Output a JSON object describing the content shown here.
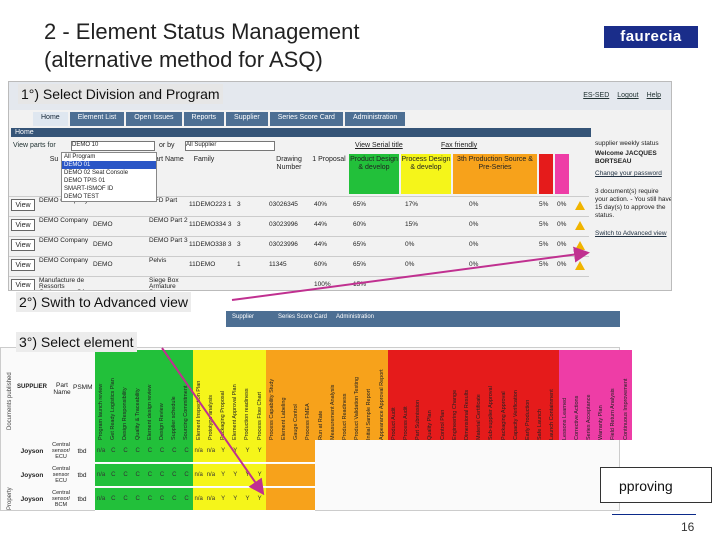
{
  "slide": {
    "title_line1": "2 - Element Status Management",
    "title_line2": "(alternative method for ASQ)",
    "logo": "faurecia",
    "page_number": "16"
  },
  "callouts": {
    "step1": "1°) Select  Division and Program",
    "step2": "2°) Swith to Advanced view",
    "step3": "3°) Select element",
    "approving": "pproving"
  },
  "colors": {
    "arrow": "#c03090",
    "green": "#22c03a",
    "yellow": "#f5f51a",
    "orange": "#f7a21b",
    "red": "#e51b1b",
    "pink": "#ee3da6"
  },
  "screen1": {
    "top_links": [
      "ES-SED",
      "Logout",
      "Help"
    ],
    "tabs": [
      "Home",
      "Element List",
      "Open Issues",
      "Reports",
      "Supplier",
      "Series Score Card",
      "Administration"
    ],
    "home_bar": "Home",
    "filter_label": "View parts for",
    "division_value": "DEMO 10",
    "program_label": "or by",
    "program_value": "All Supplier",
    "serial_link": "View Serial title",
    "fax_link": "Fax friendly",
    "dropdown_options": [
      "All Program",
      "DEMO 01",
      "DEMO 02 Seat Console",
      "DEMO TPIS 01",
      "SMART-ISMOF ID",
      "DEMO TEST"
    ],
    "columns": [
      "Su",
      "Part Name",
      "Family",
      "",
      "",
      "",
      "Drawing Number",
      "1 Proposal",
      "Product Design & develop",
      "Process Design & develop",
      "3th Production Source & Pre-Series",
      "",
      "",
      ""
    ],
    "rows": [
      {
        "view": "View",
        "supplier": "DEMO Company",
        "code": "",
        "part": "TIFD Part",
        "number": "11DEMO223 1",
        "q": "3",
        "drawing": "03026345",
        "p1": "40%",
        "p2": "65%",
        "p3": "17%",
        "p4": "0%",
        "p5": "5%",
        "p6": "0%"
      },
      {
        "view": "View",
        "supplier": "DEMO Company",
        "code": "DEMO",
        "part": "DEMO Part 2",
        "number": "11DEMO334 3",
        "q": "3",
        "drawing": "03023996",
        "p1": "44%",
        "p2": "60%",
        "p3": "15%",
        "p4": "0%",
        "p5": "5%",
        "p6": "0%"
      },
      {
        "view": "View",
        "supplier": "DEMO Company",
        "code": "DEMO",
        "part": "DEMO Part 3",
        "number": "11DEMO338 3",
        "q": "3",
        "drawing": "03023996",
        "p1": "44%",
        "p2": "65%",
        "p3": "0%",
        "p4": "0%",
        "p5": "5%",
        "p6": "0%"
      },
      {
        "view": "View",
        "supplier": "DEMO Company",
        "code": "DEMO",
        "part": "Pelvis",
        "number": "11DEMO",
        "q": "1",
        "drawing": "11345",
        "p1": "60%",
        "p2": "65%",
        "p3": "0%",
        "p4": "0%",
        "p5": "5%",
        "p6": "0%"
      },
      {
        "view": "View",
        "supplier": "Manufacture de Ressorts Cadenasses SA",
        "code": "",
        "part": "Siege Box Armature Structure",
        "number": "",
        "q": "",
        "drawing": "",
        "p1": "100%",
        "p2": "15%",
        "p3": "",
        "p4": "",
        "p5": "",
        "p6": ""
      }
    ],
    "side_panel": {
      "title": "supplier weekly status",
      "user": "Welcome JACQUES BORTSEAU",
      "change_pw": "Change your password",
      "notice": "3 document(s) require your action. - You still have 15 day(s) to approve the status.",
      "advanced_link": "Switch to Advanced view"
    }
  },
  "screen2": {
    "tabs": [
      "Supplier",
      "Series Score Card",
      "Administration"
    ],
    "side_label": "Documents published",
    "side_label2": "Property",
    "fixed_headers": [
      "SUPPLIER",
      "Part Name",
      "PSMM"
    ],
    "phase_headers": [
      "Program launch review",
      "Get Ready Logistics Plan",
      "Design Responsibility",
      "Quality & Traceability",
      "Element design review",
      "Design Review",
      "Supplier schedule",
      "Sourcing Commitment",
      "Element Inspection Plan",
      "Prototype analysis",
      "Packaging Proposal",
      "Element Approval Plan",
      "Production readiness",
      "Process Flow Chart",
      "Process Capability Study",
      "Element Labeling",
      "Gauge Control",
      "Process FMEA",
      "Run at Rate",
      "Measurement Analysis",
      "Product Readiness",
      "Product Validation Testing",
      "Initial Sample Report",
      "Appearance Approval Report",
      "Product Audit",
      "Process Audit",
      "Part Submission",
      "Quality Plan",
      "Control Plan",
      "Engineering Change",
      "Dimensional Results",
      "Material Certificate",
      "Sub-supplier Approval",
      "Packaging Approval",
      "Capacity Verification",
      "Early Production",
      "Safe Launch",
      "Launch Containment",
      "Lessons Learned",
      "Corrective Actions",
      "Series Acceptance",
      "Warranty Plan",
      "Field Return Analysis",
      "Continuous Improvement"
    ],
    "rows": [
      {
        "supplier": "Joyson",
        "part": "Central sensor/ ECU",
        "psmm": "tbd",
        "marks": [
          "n/a",
          "C",
          "C",
          "C",
          "C",
          "C",
          "C",
          "C",
          "n/a",
          "n/a",
          "Y",
          "Y",
          "Y",
          "Y",
          "",
          "",
          "",
          ""
        ]
      },
      {
        "supplier": "Joyson",
        "part": "Central sensor ECU",
        "psmm": "tbd",
        "marks": [
          "n/a",
          "C",
          "C",
          "C",
          "C",
          "C",
          "C",
          "C",
          "n/a",
          "n/a",
          "Y",
          "Y",
          "Y",
          "Y",
          "",
          "",
          "",
          ""
        ]
      },
      {
        "supplier": "Joyson",
        "part": "Central sensor/ BCM",
        "psmm": "tbd",
        "marks": [
          "n/a",
          "C",
          "C",
          "C",
          "C",
          "C",
          "C",
          "C",
          "n/a",
          "n/a",
          "Y",
          "Y",
          "Y",
          "Y",
          "",
          "",
          "",
          ""
        ]
      }
    ]
  }
}
